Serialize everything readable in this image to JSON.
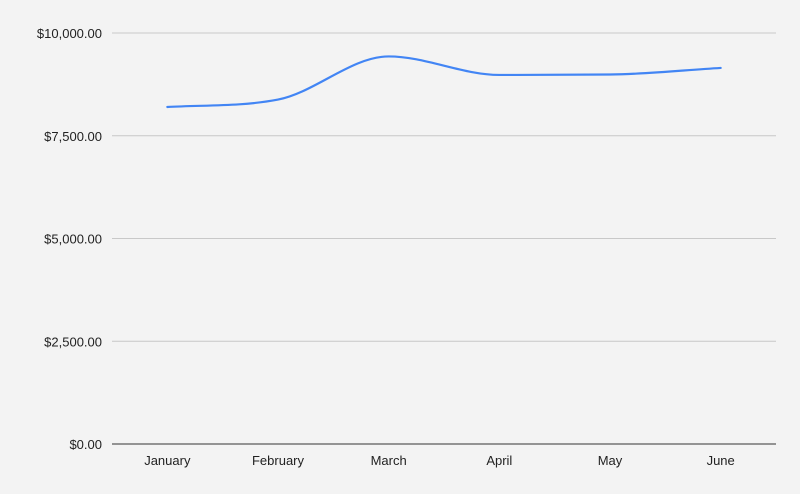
{
  "chart_data": {
    "type": "line",
    "categories": [
      "January",
      "February",
      "March",
      "April",
      "May",
      "June"
    ],
    "series": [
      {
        "values": [
          8200,
          8380,
          9430,
          8980,
          8990,
          9150
        ],
        "color": "#4285f4"
      }
    ],
    "y_ticks": [
      0,
      2500,
      5000,
      7500,
      10000
    ],
    "y_tick_labels": [
      "$0.00",
      "$2,500.00",
      "$5,000.00",
      "$7,500.00",
      "$10,000.00"
    ],
    "ylim": [
      0,
      10000
    ],
    "grid": true,
    "smooth": true
  }
}
